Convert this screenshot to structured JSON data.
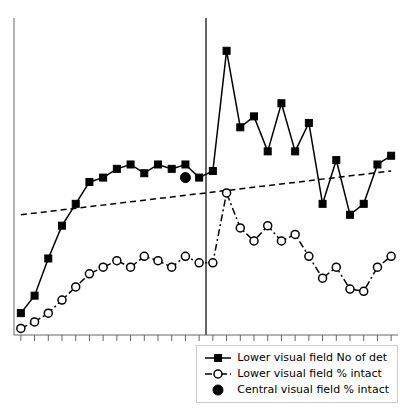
{
  "chart_data": {
    "type": "line",
    "xlim": [
      -0.5,
      27.5
    ],
    "xticks": [
      0,
      1,
      2,
      3,
      4,
      5,
      6,
      7,
      8,
      9,
      10,
      11,
      12,
      13,
      14,
      15,
      16,
      17,
      18,
      19,
      20,
      21,
      22,
      23,
      24,
      25,
      26,
      27
    ],
    "ylim": [
      0,
      145
    ],
    "yticks": [],
    "tick_labels": false,
    "grid": false,
    "legend": "lower right",
    "series": [
      {
        "type": "line",
        "color": "#000000",
        "line_style": "dashed",
        "marker": "none",
        "x": [
          0,
          27
        ],
        "values": [
          55,
          75
        ]
      },
      {
        "name": "Lower visual field No of det",
        "type": "line",
        "color": "#000000",
        "line_style": "solid",
        "marker": "square",
        "x": [
          0,
          1,
          2,
          3,
          4,
          5,
          6,
          7,
          8,
          9,
          10,
          11,
          12,
          13,
          14,
          15,
          16,
          17,
          18,
          19,
          20,
          21,
          22,
          23,
          24,
          25,
          26,
          27
        ],
        "values": [
          10,
          18,
          35,
          50,
          60,
          70,
          72,
          76,
          78,
          74,
          78,
          76,
          78,
          72,
          75,
          130,
          95,
          100,
          84,
          106,
          84,
          97,
          60,
          80,
          55,
          60,
          78,
          82
        ]
      },
      {
        "name": "Lower visual field % intact",
        "type": "line",
        "color": "#000000",
        "line_style": "dashdot",
        "marker": "open_circle",
        "x": [
          0,
          1,
          2,
          3,
          4,
          5,
          6,
          7,
          8,
          9,
          10,
          11,
          12,
          13,
          14,
          15,
          16,
          17,
          18,
          19,
          20,
          21,
          22,
          23,
          24,
          25,
          26,
          27
        ],
        "values": [
          3,
          6,
          10,
          16,
          22,
          28,
          31,
          34,
          31,
          36,
          34,
          31,
          36,
          33,
          33,
          65,
          49,
          43,
          50,
          43,
          46,
          36,
          26,
          31,
          21,
          20,
          31,
          36
        ]
      },
      {
        "name": "Central visual field % intact",
        "type": "scatter",
        "color": "#000000",
        "line_style": "none",
        "marker": "circle",
        "x": [
          12
        ],
        "values": [
          72
        ]
      },
      {
        "type": "vline",
        "color": "#000000",
        "x": [
          13.5
        ]
      }
    ]
  }
}
